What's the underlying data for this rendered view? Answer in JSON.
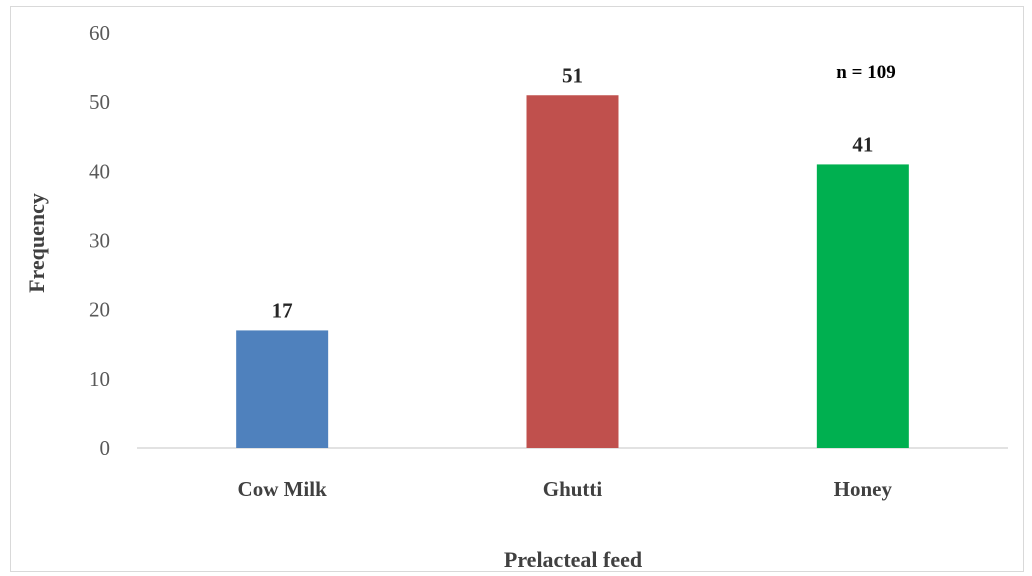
{
  "chart_data": {
    "type": "bar",
    "categories": [
      "Cow Milk",
      "Ghutti",
      "Honey"
    ],
    "values": [
      17,
      51,
      41
    ],
    "colors": [
      "#4f81bd",
      "#c0504d",
      "#00b050"
    ],
    "xlabel": "Prelacteal feed",
    "ylabel": "Frequency",
    "ylim": [
      0,
      60
    ],
    "yticks": [
      0,
      10,
      20,
      30,
      40,
      50,
      60
    ],
    "annotation": "n = 109",
    "grid": false,
    "legend": "none"
  }
}
